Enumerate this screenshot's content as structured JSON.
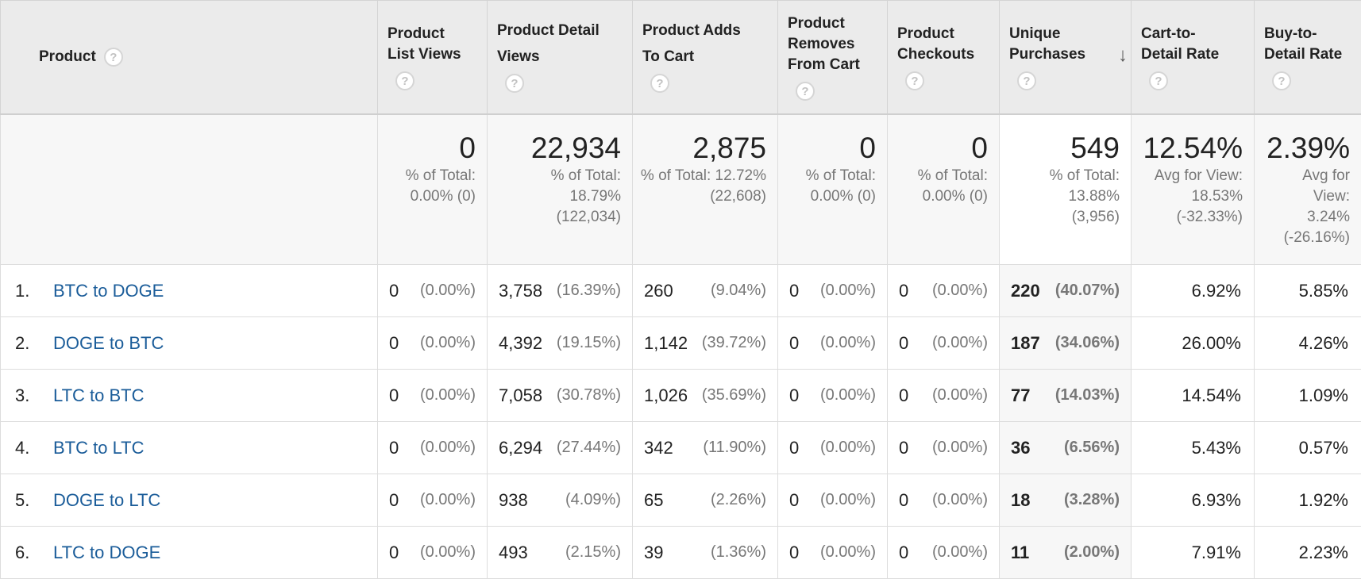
{
  "columns": [
    {
      "key": "product",
      "label": "Product"
    },
    {
      "key": "plv",
      "label": "Product List Views"
    },
    {
      "key": "pdv",
      "label": "Product Detail Views"
    },
    {
      "key": "pac",
      "label": "Product Adds To Cart"
    },
    {
      "key": "prc",
      "label": "Product Removes From Cart"
    },
    {
      "key": "pco",
      "label": "Product Checkouts"
    },
    {
      "key": "up",
      "label": "Unique Purchases"
    },
    {
      "key": "cdr",
      "label": "Cart-to-Detail Rate"
    },
    {
      "key": "bdr",
      "label": "Buy-to-Detail Rate"
    }
  ],
  "help_glyph": "?",
  "sort_glyph": "↓",
  "totals": {
    "plv": {
      "value": "0",
      "sub": "% of Total: 0.00% (0)"
    },
    "pdv": {
      "value": "22,934",
      "sub": "% of Total: 18.79% (122,034)"
    },
    "pac": {
      "value": "2,875",
      "sub": "% of Total: 12.72% (22,608)"
    },
    "prc": {
      "value": "0",
      "sub": "% of Total: 0.00% (0)"
    },
    "pco": {
      "value": "0",
      "sub": "% of Total: 0.00% (0)"
    },
    "up": {
      "value": "549",
      "sub": "% of Total: 13.88% (3,956)"
    },
    "cdr": {
      "value": "12.54%",
      "sub": "Avg for View: 18.53% (-32.33%)"
    },
    "bdr": {
      "value": "2.39%",
      "sub": "Avg for View: 3.24% (-26.16%)"
    }
  },
  "rows": [
    {
      "num": "1.",
      "product": "BTC to DOGE",
      "plv": "0",
      "plv_p": "(0.00%)",
      "pdv": "3,758",
      "pdv_p": "(16.39%)",
      "pac": "260",
      "pac_p": "(9.04%)",
      "prc": "0",
      "prc_p": "(0.00%)",
      "pco": "0",
      "pco_p": "(0.00%)",
      "up": "220",
      "up_p": "(40.07%)",
      "cdr": "6.92%",
      "bdr": "5.85%"
    },
    {
      "num": "2.",
      "product": "DOGE to BTC",
      "plv": "0",
      "plv_p": "(0.00%)",
      "pdv": "4,392",
      "pdv_p": "(19.15%)",
      "pac": "1,142",
      "pac_p": "(39.72%)",
      "prc": "0",
      "prc_p": "(0.00%)",
      "pco": "0",
      "pco_p": "(0.00%)",
      "up": "187",
      "up_p": "(34.06%)",
      "cdr": "26.00%",
      "bdr": "4.26%"
    },
    {
      "num": "3.",
      "product": "LTC to BTC",
      "plv": "0",
      "plv_p": "(0.00%)",
      "pdv": "7,058",
      "pdv_p": "(30.78%)",
      "pac": "1,026",
      "pac_p": "(35.69%)",
      "prc": "0",
      "prc_p": "(0.00%)",
      "pco": "0",
      "pco_p": "(0.00%)",
      "up": "77",
      "up_p": "(14.03%)",
      "cdr": "14.54%",
      "bdr": "1.09%"
    },
    {
      "num": "4.",
      "product": "BTC to LTC",
      "plv": "0",
      "plv_p": "(0.00%)",
      "pdv": "6,294",
      "pdv_p": "(27.44%)",
      "pac": "342",
      "pac_p": "(11.90%)",
      "prc": "0",
      "prc_p": "(0.00%)",
      "pco": "0",
      "pco_p": "(0.00%)",
      "up": "36",
      "up_p": "(6.56%)",
      "cdr": "5.43%",
      "bdr": "0.57%"
    },
    {
      "num": "5.",
      "product": "DOGE to LTC",
      "plv": "0",
      "plv_p": "(0.00%)",
      "pdv": "938",
      "pdv_p": "(4.09%)",
      "pac": "65",
      "pac_p": "(2.26%)",
      "prc": "0",
      "prc_p": "(0.00%)",
      "pco": "0",
      "pco_p": "(0.00%)",
      "up": "18",
      "up_p": "(3.28%)",
      "cdr": "6.93%",
      "bdr": "1.92%"
    },
    {
      "num": "6.",
      "product": "LTC to DOGE",
      "plv": "0",
      "plv_p": "(0.00%)",
      "pdv": "493",
      "pdv_p": "(2.15%)",
      "pac": "39",
      "pac_p": "(1.36%)",
      "prc": "0",
      "prc_p": "(0.00%)",
      "pco": "0",
      "pco_p": "(0.00%)",
      "up": "11",
      "up_p": "(2.00%)",
      "cdr": "7.91%",
      "bdr": "2.23%"
    }
  ],
  "colors": {
    "link": "#1a5c99",
    "header_bg": "#ebebeb",
    "muted": "#777777"
  }
}
